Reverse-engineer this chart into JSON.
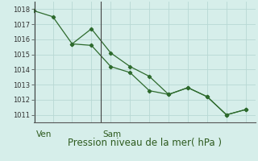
{
  "line1_x": [
    0,
    1,
    2,
    3,
    4,
    5,
    6,
    7,
    8,
    9,
    10,
    11
  ],
  "line1_y": [
    1017.9,
    1017.5,
    1015.7,
    1015.6,
    1014.2,
    1013.8,
    1012.6,
    1012.35,
    1012.8,
    1012.2,
    1011.0,
    1011.35
  ],
  "line2_x": [
    2,
    3,
    4,
    5,
    6,
    7,
    8,
    9,
    10,
    11
  ],
  "line2_y": [
    1015.7,
    1016.7,
    1015.1,
    1014.2,
    1013.55,
    1012.35,
    1012.8,
    1012.2,
    1011.0,
    1011.35
  ],
  "line_color": "#2d6a2d",
  "background_color": "#d6eeea",
  "grid_color_major": "#b8d8d4",
  "grid_color_minor": "#cce8e4",
  "axis_label": "Pression niveau de la mer( hPa )",
  "ylim": [
    1010.5,
    1018.5
  ],
  "yticks": [
    1011,
    1012,
    1013,
    1014,
    1015,
    1016,
    1017,
    1018
  ],
  "xlim": [
    0,
    11.5
  ],
  "ven_x": 0.05,
  "sam_x": 3.5,
  "ven_label": "Ven",
  "sam_label": "Sam",
  "label_fontsize": 7.5,
  "tick_fontsize": 6.0,
  "xlabel_fontsize": 8.5
}
